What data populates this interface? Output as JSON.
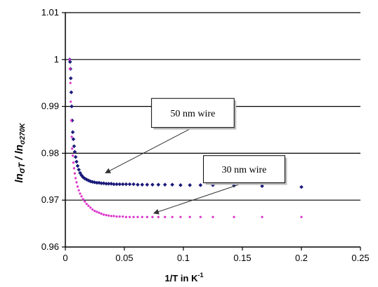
{
  "chart_data": {
    "type": "scatter",
    "title": "",
    "xlabel": "1/T  in  K",
    "xlabel_sup": "-1",
    "ylabel_main": "ln",
    "ylabel_sub1": "σT",
    "ylabel_mid": " / ln",
    "ylabel_sub2": "σ270K",
    "xlim": [
      0,
      0.25
    ],
    "ylim": [
      0.96,
      1.01
    ],
    "xticks": [
      0,
      0.05,
      0.1,
      0.15,
      0.2,
      0.25
    ],
    "xtick_labels": [
      "0",
      "0.05",
      "0.1",
      "0.15",
      "0.2",
      "0.25"
    ],
    "yticks": [
      0.96,
      0.97,
      0.98,
      0.99,
      1,
      1.01
    ],
    "ytick_labels": [
      "0.96",
      "0.97",
      "0.98",
      "0.99",
      "1",
      "1.01"
    ],
    "grid": "horizontal",
    "series": [
      {
        "name": "50 nm wire",
        "color": "#1a1a7a",
        "marker": "diamond",
        "x": [
          0.0037,
          0.004,
          0.0043,
          0.0046,
          0.005,
          0.0054,
          0.0058,
          0.0063,
          0.0068,
          0.0074,
          0.008,
          0.0087,
          0.0095,
          0.0104,
          0.0114,
          0.0125,
          0.0137,
          0.015,
          0.0165,
          0.018,
          0.0196,
          0.0213,
          0.023,
          0.0248,
          0.0267,
          0.0286,
          0.0305,
          0.0325,
          0.0346,
          0.0367,
          0.0389,
          0.0411,
          0.0435,
          0.046,
          0.0487,
          0.0515,
          0.0545,
          0.0578,
          0.0613,
          0.0651,
          0.0693,
          0.0738,
          0.0788,
          0.0844,
          0.0906,
          0.0976,
          0.1055,
          0.1145,
          0.125,
          0.1429,
          0.1667,
          0.2
        ],
        "y": [
          1.0,
          0.9995,
          0.998,
          0.996,
          0.993,
          0.99,
          0.987,
          0.9845,
          0.983,
          0.9815,
          0.9803,
          0.9792,
          0.9782,
          0.9773,
          0.9765,
          0.9758,
          0.9753,
          0.9749,
          0.9746,
          0.9744,
          0.9742,
          0.974,
          0.9739,
          0.9738,
          0.9737,
          0.9737,
          0.9736,
          0.9736,
          0.9735,
          0.9735,
          0.9735,
          0.9734,
          0.9734,
          0.9734,
          0.9734,
          0.9734,
          0.9734,
          0.9734,
          0.9733,
          0.9733,
          0.9733,
          0.9733,
          0.9733,
          0.9733,
          0.9733,
          0.9732,
          0.9732,
          0.9732,
          0.9732,
          0.9731,
          0.973,
          0.9728
        ]
      },
      {
        "name": "30 nm wire",
        "color": "#dd33cc",
        "marker": "dot",
        "x": [
          0.0037,
          0.004,
          0.0043,
          0.0046,
          0.005,
          0.0054,
          0.0058,
          0.0063,
          0.0068,
          0.0074,
          0.008,
          0.0087,
          0.0095,
          0.0104,
          0.0114,
          0.0125,
          0.0137,
          0.015,
          0.0165,
          0.018,
          0.0196,
          0.0213,
          0.023,
          0.0248,
          0.0267,
          0.0286,
          0.0305,
          0.0325,
          0.0346,
          0.0367,
          0.0389,
          0.0411,
          0.0435,
          0.046,
          0.0487,
          0.0515,
          0.0545,
          0.0578,
          0.0613,
          0.0651,
          0.0693,
          0.0738,
          0.0788,
          0.0844,
          0.0906,
          0.0976,
          0.1055,
          0.1145,
          0.125,
          0.1429,
          0.1667,
          0.2
        ],
        "y": [
          1.0,
          0.998,
          0.995,
          0.991,
          0.987,
          0.9835,
          0.981,
          0.9795,
          0.978,
          0.9768,
          0.9757,
          0.9747,
          0.9738,
          0.9729,
          0.9721,
          0.9714,
          0.9708,
          0.9702,
          0.9697,
          0.9692,
          0.9688,
          0.9684,
          0.968,
          0.9677,
          0.9675,
          0.9673,
          0.9671,
          0.9669,
          0.9668,
          0.9667,
          0.9666,
          0.9666,
          0.9665,
          0.9665,
          0.9665,
          0.9664,
          0.9664,
          0.9664,
          0.9664,
          0.9664,
          0.9664,
          0.9664,
          0.9664,
          0.9664,
          0.9664,
          0.9664,
          0.9664,
          0.9664,
          0.9664,
          0.9664,
          0.9664,
          0.9664
        ]
      }
    ],
    "annotations": [
      {
        "text": "50 nm wire",
        "box_x": 0.073,
        "box_y": 0.9917,
        "box_x2": 0.143,
        "box_y2": 0.9855,
        "arrow_to_x": 0.034,
        "arrow_to_y": 0.9758
      },
      {
        "text": "30 nm wire",
        "box_x": 0.117,
        "box_y": 0.9795,
        "box_x2": 0.186,
        "box_y2": 0.9737,
        "arrow_to_x": 0.075,
        "arrow_to_y": 0.9672
      }
    ]
  }
}
